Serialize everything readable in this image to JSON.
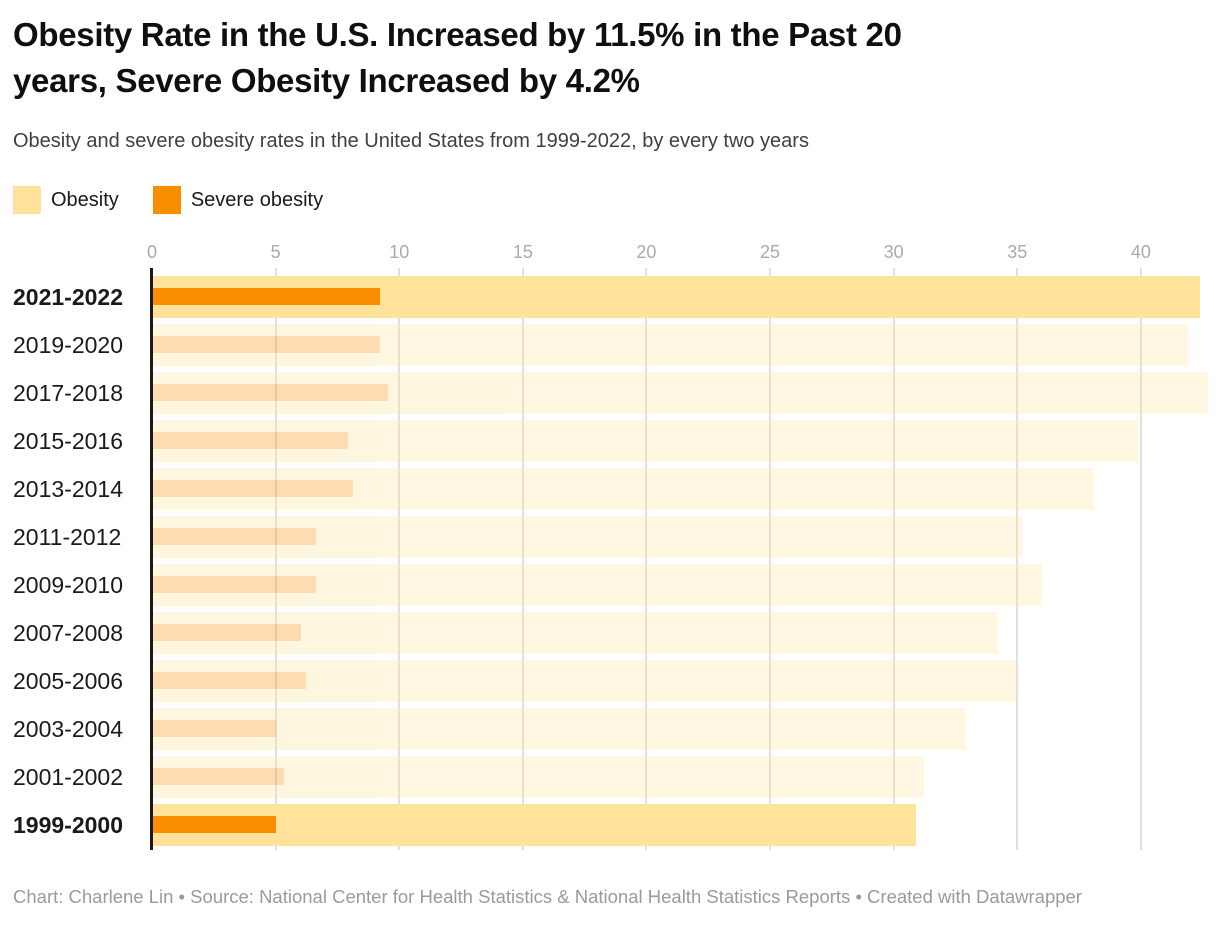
{
  "header": {
    "title": "Obesity Rate in the U.S. Increased by 11.5% in the Past 20 years, Severe Obesity Increased by 4.2%",
    "title_lines": [
      "Obesity Rate in the U.S. Increased by 11.5% in the Past 20",
      "years, Severe Obesity Increased by 4.2%"
    ],
    "subtitle": "Obesity and severe obesity rates in the United States from 1999-2022, by every two years"
  },
  "legend": {
    "items": [
      {
        "label": "Obesity",
        "color": "#FFE39B"
      },
      {
        "label": "Severe obesity",
        "color": "#F98E00"
      }
    ]
  },
  "chart_data": {
    "type": "bar",
    "orientation": "horizontal",
    "title": "Obesity Rate in the U.S. Increased by 11.5% in the Past 20 years, Severe Obesity Increased by 4.2%",
    "subtitle": "Obesity and severe obesity rates in the United States from 1999-2022, by every two years",
    "xlabel": "",
    "ylabel": "",
    "value_unit": "percent",
    "categories": [
      "2021-2022",
      "2019-2020",
      "2017-2018",
      "2015-2016",
      "2013-2014",
      "2011-2012",
      "2009-2010",
      "2007-2008",
      "2005-2006",
      "2003-2004",
      "2001-2002",
      "1999-2000"
    ],
    "series": [
      {
        "name": "Obesity",
        "color": "#FFE39B",
        "values": [
          42.4,
          41.9,
          42.7,
          39.9,
          38.1,
          35.2,
          36.0,
          34.2,
          35.0,
          32.9,
          31.2,
          30.9
        ]
      },
      {
        "name": "Severe obesity",
        "color": "#F98E00",
        "values": [
          9.2,
          9.2,
          9.5,
          7.9,
          8.1,
          6.6,
          6.6,
          6.0,
          6.2,
          5.0,
          5.3,
          5.0
        ]
      }
    ],
    "highlighted_categories": [
      "2021-2022",
      "1999-2000"
    ],
    "faded_row_opacity": 0.3,
    "x_ticks": [
      0,
      5,
      10,
      15,
      20,
      25,
      30,
      35,
      40
    ],
    "xlim": [
      0,
      43.2
    ],
    "grid": true,
    "legend_position": "top-left"
  },
  "footer": {
    "text": "Chart: Charlene Lin • Source: National Center for Health Statistics & National Health Statistics Reports • Created with Datawrapper"
  },
  "colors": {
    "obesity": "#FFE39B",
    "severe_obesity": "#F98E00",
    "gridline": "#E0E0E0",
    "axis_line": "#1A1A1A",
    "tick_label": "#ABABAB",
    "row_label": "#1A1A1A",
    "title": "#0F0F0F",
    "subtitle": "#404040",
    "footer": "#9A9A9A",
    "background": "#FFFFFF"
  }
}
